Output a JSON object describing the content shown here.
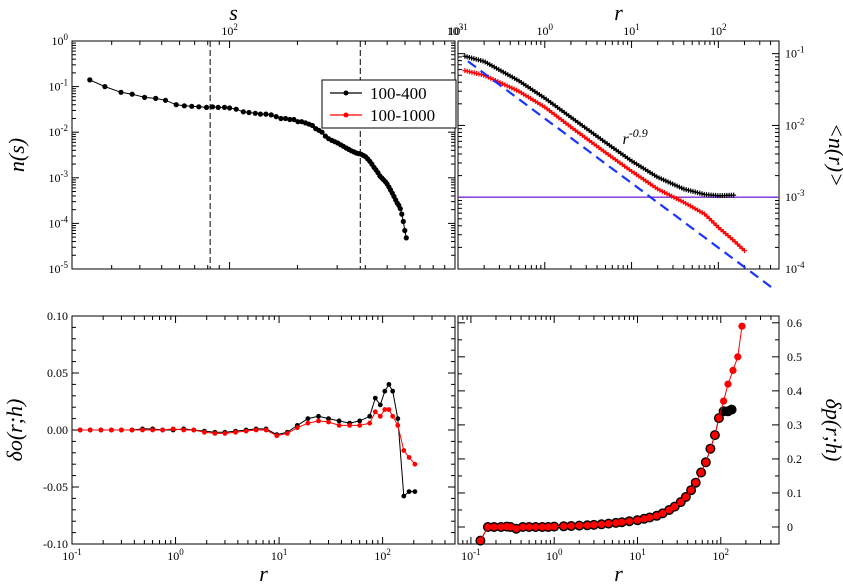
{
  "colors": {
    "black": "#000000",
    "red": "#ff0000",
    "blue": "#1a33ff",
    "purple": "#7b2fd6"
  },
  "chart_data": [
    {
      "panel": "top-left",
      "type": "line",
      "xlabel": "s",
      "ylabel": "n(s)",
      "xscale": "log",
      "yscale": "log",
      "xlim": [
        20,
        1000
      ],
      "ylim": [
        1e-05,
        1
      ],
      "x_ticks": [
        {
          "v": 100,
          "base": "10",
          "exp": "2"
        },
        {
          "v": 1000,
          "base": "10",
          "exp": "3"
        }
      ],
      "y_ticks": [
        {
          "v": 1,
          "base": "10",
          "exp": "0"
        },
        {
          "v": 0.1,
          "base": "10",
          "exp": "-1"
        },
        {
          "v": 0.01,
          "base": "10",
          "exp": "-2"
        },
        {
          "v": 0.001,
          "base": "10",
          "exp": "-3"
        },
        {
          "v": 0.0001,
          "base": "10",
          "exp": "-4"
        },
        {
          "v": 1e-05,
          "base": "10",
          "exp": "-5"
        }
      ],
      "vlines": [
        82,
        380
      ],
      "series": [
        {
          "name": "n(s)",
          "color": "#000000",
          "x": [
            24,
            28,
            33,
            37,
            42,
            47,
            52,
            58,
            63,
            68,
            73,
            79,
            84,
            89,
            95,
            100,
            107,
            115,
            122,
            130,
            137,
            145,
            153,
            161,
            169,
            177,
            185,
            193,
            201,
            209,
            217,
            225,
            233,
            241,
            249,
            257,
            266,
            275,
            284,
            293,
            302,
            311,
            320,
            329,
            338,
            347,
            356,
            365,
            374,
            383,
            392,
            401,
            410,
            419,
            428,
            437,
            446,
            455,
            464,
            473,
            482,
            491,
            500,
            509,
            518,
            527,
            536,
            545,
            554,
            563,
            572,
            581,
            590,
            599,
            608
          ],
          "y": [
            0.14,
            0.1,
            0.075,
            0.068,
            0.058,
            0.055,
            0.05,
            0.04,
            0.038,
            0.037,
            0.036,
            0.035,
            0.036,
            0.035,
            0.035,
            0.034,
            0.032,
            0.028,
            0.027,
            0.026,
            0.025,
            0.025,
            0.024,
            0.022,
            0.02,
            0.02,
            0.019,
            0.019,
            0.017,
            0.017,
            0.016,
            0.015,
            0.014,
            0.012,
            0.011,
            0.01,
            0.0082,
            0.0072,
            0.0066,
            0.0062,
            0.0058,
            0.0053,
            0.0049,
            0.0045,
            0.0042,
            0.0039,
            0.0037,
            0.0035,
            0.0034,
            0.0033,
            0.0031,
            0.0029,
            0.0026,
            0.0023,
            0.002,
            0.0017,
            0.0015,
            0.0013,
            0.0011,
            0.001,
            0.00091,
            0.00082,
            0.00073,
            0.00063,
            0.00054,
            0.00046,
            0.00039,
            0.00033,
            0.00028,
            0.00025,
            0.00021,
            0.00016,
            0.00011,
            7e-05,
            4.8e-05
          ]
        }
      ]
    },
    {
      "panel": "top-right",
      "type": "line",
      "xlabel": "r",
      "ylabel": "<n(r)>",
      "xscale": "log",
      "yscale": "log",
      "xlim": [
        0.1,
        500
      ],
      "ylim": [
        0.0001,
        0.15
      ],
      "x_ticks": [
        {
          "v": 0.1,
          "base": "10",
          "exp": "-1"
        },
        {
          "v": 1,
          "base": "10",
          "exp": "0"
        },
        {
          "v": 10,
          "base": "10",
          "exp": "1"
        },
        {
          "v": 100,
          "base": "10",
          "exp": "2"
        }
      ],
      "y_ticks": [
        {
          "v": 0.1,
          "base": "10",
          "exp": "-1"
        },
        {
          "v": 0.01,
          "base": "10",
          "exp": "-2"
        },
        {
          "v": 0.001,
          "base": "10",
          "exp": "-3"
        },
        {
          "v": 0.0001,
          "base": "10",
          "exp": "-4"
        }
      ],
      "annotation": {
        "base": "r",
        "exp": "-0.9",
        "x": 11,
        "y": 0.0055
      },
      "hline": {
        "y": 0.001,
        "color": "#7b2fd6"
      },
      "fit": {
        "name": "power law r^-0.9",
        "exponent": -0.9,
        "amplitude": 0.0125,
        "x_range": [
          0.13,
          420
        ],
        "color": "#1a33ff",
        "style": "dashed"
      },
      "series": [
        {
          "name": "100-400",
          "color": "#000000",
          "anchors_x": [
            0.12,
            0.2,
            0.5,
            1,
            2,
            5,
            10,
            20,
            40,
            70,
            100,
            150
          ],
          "anchors_y": [
            0.092,
            0.078,
            0.042,
            0.024,
            0.013,
            0.0058,
            0.0032,
            0.0019,
            0.0013,
            0.00109,
            0.00105,
            0.00107
          ]
        },
        {
          "name": "100-1000",
          "color": "#ff0000",
          "anchors_x": [
            0.12,
            0.2,
            0.5,
            1,
            2,
            5,
            10,
            20,
            40,
            70,
            100,
            150,
            200
          ],
          "anchors_y": [
            0.058,
            0.05,
            0.03,
            0.018,
            0.0095,
            0.0042,
            0.0023,
            0.0013,
            0.00085,
            0.00058,
            0.00038,
            0.00025,
            0.00018
          ]
        }
      ]
    },
    {
      "panel": "bottom-left",
      "type": "line",
      "xlabel": "r",
      "ylabel": "δo(r;h)",
      "xscale": "log",
      "yscale": "linear",
      "xlim": [
        0.1,
        500
      ],
      "ylim": [
        -0.1,
        0.1
      ],
      "x_ticks": [
        {
          "v": 0.1,
          "base": "10",
          "exp": "-1"
        },
        {
          "v": 1,
          "base": "10",
          "exp": "0"
        },
        {
          "v": 10,
          "base": "10",
          "exp": "1"
        },
        {
          "v": 100,
          "base": "10",
          "exp": "2"
        }
      ],
      "y_ticks": [
        {
          "v": 0.1,
          "label": "0.10"
        },
        {
          "v": 0.05,
          "label": "0.05"
        },
        {
          "v": 0,
          "label": "0.00"
        },
        {
          "v": -0.05,
          "label": "-0.05"
        },
        {
          "v": -0.1,
          "label": "-0.10"
        }
      ],
      "series": [
        {
          "name": "100-400",
          "color": "#000000",
          "x": [
            0.12,
            0.15,
            0.19,
            0.24,
            0.3,
            0.38,
            0.48,
            0.6,
            0.75,
            0.95,
            1.2,
            1.5,
            1.9,
            2.4,
            3,
            3.8,
            4.8,
            6,
            7.5,
            9.5,
            12,
            15,
            19,
            24,
            30,
            38,
            48,
            60,
            75,
            85,
            95,
            105,
            115,
            125,
            140,
            160,
            180,
            205
          ],
          "y": [
            0,
            0,
            0,
            0,
            0,
            0,
            0.001,
            0.001,
            0,
            0,
            0.001,
            0,
            -0.001,
            -0.002,
            -0.002,
            -0.001,
            0,
            0.001,
            0.001,
            -0.004,
            -0.002,
            0.004,
            0.01,
            0.012,
            0.01,
            0.008,
            0.006,
            0.008,
            0.012,
            0.028,
            0.022,
            0.034,
            0.04,
            0.034,
            0.01,
            -0.058,
            -0.054,
            -0.054
          ]
        },
        {
          "name": "100-1000",
          "color": "#ff0000",
          "x": [
            0.12,
            0.15,
            0.19,
            0.24,
            0.3,
            0.38,
            0.48,
            0.6,
            0.75,
            0.95,
            1.2,
            1.5,
            1.9,
            2.4,
            3,
            3.8,
            4.8,
            6,
            7.5,
            9.5,
            12,
            15,
            19,
            24,
            30,
            38,
            48,
            60,
            75,
            85,
            95,
            105,
            115,
            125,
            140,
            160,
            180,
            205
          ],
          "y": [
            0,
            0,
            0,
            0,
            0,
            0,
            0,
            0,
            0,
            0.001,
            0,
            0,
            -0.002,
            -0.003,
            -0.003,
            -0.002,
            -0.001,
            0,
            0,
            -0.005,
            -0.003,
            0.002,
            0.006,
            0.008,
            0.007,
            0.004,
            0.004,
            0.004,
            0.006,
            0.016,
            0.012,
            0.018,
            0.018,
            0.012,
            0.004,
            -0.018,
            -0.024,
            -0.03
          ]
        }
      ]
    },
    {
      "panel": "bottom-right",
      "type": "line",
      "xlabel": "r",
      "ylabel": "δp(r;h)",
      "xscale": "log",
      "yscale": "linear",
      "xlim": [
        0.07,
        500
      ],
      "ylim": [
        -0.05,
        0.62
      ],
      "x_ticks": [
        {
          "v": 0.1,
          "base": "10",
          "exp": "-1"
        },
        {
          "v": 1,
          "base": "10",
          "exp": "0"
        },
        {
          "v": 10,
          "base": "10",
          "exp": "1"
        },
        {
          "v": 100,
          "base": "10",
          "exp": "2"
        }
      ],
      "y_ticks": [
        {
          "v": 0,
          "label": "0"
        },
        {
          "v": 0.1,
          "label": "0.1"
        },
        {
          "v": 0.2,
          "label": "0.2"
        },
        {
          "v": 0.3,
          "label": "0.3"
        },
        {
          "v": 0.4,
          "label": "0.4"
        },
        {
          "v": 0.5,
          "label": "0.5"
        },
        {
          "v": 0.6,
          "label": "0.6"
        }
      ],
      "series": [
        {
          "name": "100-400",
          "color": "#000000",
          "x": [
            0.13,
            0.16,
            0.19,
            0.23,
            0.27,
            0.3,
            0.35,
            0.42,
            0.5,
            0.6,
            0.72,
            0.85,
            1.0,
            1.3,
            1.6,
            2.0,
            2.5,
            3.0,
            3.7,
            4.5,
            5.5,
            6.5,
            8,
            10,
            12,
            14,
            17,
            20,
            24,
            28,
            33,
            38,
            44,
            50,
            58,
            66,
            75,
            85,
            95,
            108,
            122,
            135
          ],
          "y": [
            -0.04,
            0,
            0,
            0,
            0.001,
            0,
            -0.005,
            0,
            0,
            0,
            0,
            0,
            0.001,
            0.002,
            0.003,
            0.004,
            0.005,
            0.006,
            0.008,
            0.01,
            0.012,
            0.014,
            0.017,
            0.02,
            0.024,
            0.028,
            0.033,
            0.04,
            0.05,
            0.06,
            0.073,
            0.088,
            0.108,
            0.13,
            0.16,
            0.19,
            0.23,
            0.27,
            0.32,
            0.34,
            0.34,
            0.345
          ]
        },
        {
          "name": "100-1000",
          "color": "#ff0000",
          "x": [
            0.13,
            0.16,
            0.19,
            0.23,
            0.27,
            0.3,
            0.35,
            0.42,
            0.5,
            0.6,
            0.72,
            0.85,
            1.0,
            1.3,
            1.6,
            2.0,
            2.5,
            3.0,
            3.7,
            4.5,
            5.5,
            6.5,
            8,
            10,
            12,
            14,
            17,
            20,
            24,
            28,
            33,
            38,
            44,
            50,
            58,
            66,
            75,
            85,
            95,
            108,
            122,
            140,
            160,
            180
          ],
          "y": [
            -0.04,
            0,
            0,
            0,
            0.001,
            0,
            -0.005,
            0,
            0,
            0,
            0,
            0,
            0.001,
            0.002,
            0.003,
            0.004,
            0.005,
            0.006,
            0.008,
            0.01,
            0.012,
            0.014,
            0.017,
            0.02,
            0.024,
            0.028,
            0.033,
            0.04,
            0.05,
            0.06,
            0.073,
            0.088,
            0.108,
            0.13,
            0.16,
            0.19,
            0.23,
            0.27,
            0.32,
            0.37,
            0.42,
            0.46,
            0.5,
            0.59
          ]
        }
      ]
    }
  ],
  "legend": {
    "entries": [
      {
        "label": "100-400",
        "color": "#000000"
      },
      {
        "label": "100-1000",
        "color": "#ff0000"
      }
    ]
  }
}
